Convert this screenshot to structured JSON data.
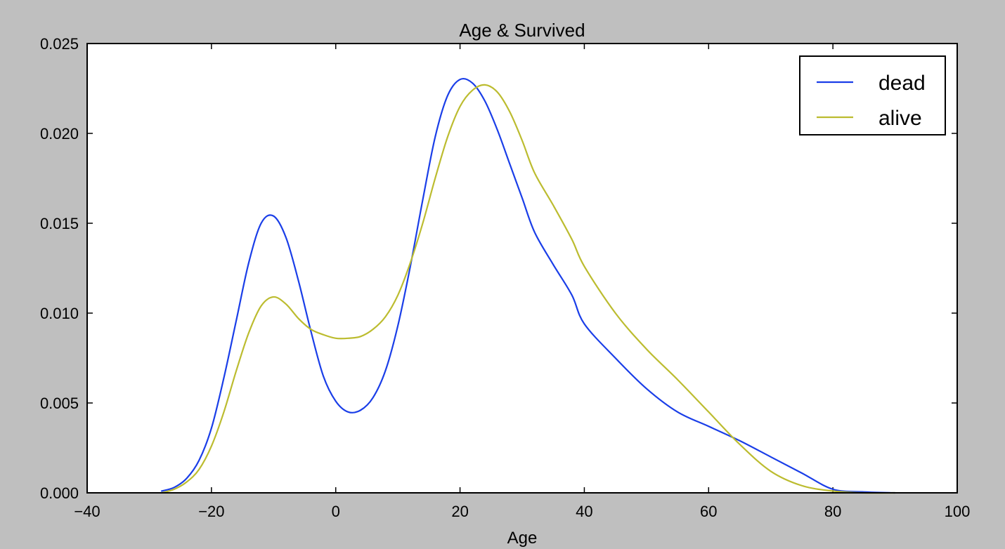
{
  "chart_data": {
    "type": "line",
    "title": "Age & Survived",
    "xlabel": "Age",
    "ylabel": "",
    "xlim": [
      -40,
      100
    ],
    "ylim": [
      0,
      0.025
    ],
    "xticks": [
      -40,
      -20,
      0,
      20,
      40,
      60,
      80,
      100
    ],
    "xtick_labels": [
      "−40",
      "−20",
      "0",
      "20",
      "40",
      "60",
      "80",
      "100"
    ],
    "yticks": [
      0,
      0.005,
      0.01,
      0.015,
      0.02,
      0.025
    ],
    "ytick_labels": [
      "0.000",
      "0.005",
      "0.010",
      "0.015",
      "0.020",
      "0.025"
    ],
    "grid": false,
    "legend_position": "top-right",
    "series": [
      {
        "name": "dead",
        "color": "#1a3ee8",
        "x": [
          -28,
          -26,
          -24,
          -22,
          -20,
          -18,
          -16,
          -14,
          -12,
          -10,
          -8,
          -6,
          -4,
          -2,
          0,
          2,
          4,
          6,
          8,
          10,
          12,
          14,
          16,
          18,
          20,
          22,
          24,
          26,
          28,
          30,
          32,
          35,
          38,
          40,
          45,
          50,
          55,
          60,
          65,
          70,
          75,
          80,
          85,
          90
        ],
        "y": [
          0.0001,
          0.0003,
          0.0008,
          0.0018,
          0.0036,
          0.0064,
          0.0096,
          0.0128,
          0.015,
          0.0154,
          0.0142,
          0.0118,
          0.009,
          0.0065,
          0.0051,
          0.0045,
          0.0046,
          0.0053,
          0.0068,
          0.0093,
          0.0126,
          0.0163,
          0.0198,
          0.0221,
          0.023,
          0.0228,
          0.0218,
          0.0202,
          0.0183,
          0.0164,
          0.0145,
          0.0127,
          0.011,
          0.0094,
          0.0075,
          0.0058,
          0.0045,
          0.0037,
          0.0029,
          0.002,
          0.0011,
          0.0002,
          5e-05,
          0.0
        ]
      },
      {
        "name": "alive",
        "color": "#bcbc2f",
        "x": [
          -28,
          -26,
          -24,
          -22,
          -20,
          -18,
          -16,
          -14,
          -12,
          -10,
          -8,
          -6,
          -4,
          -2,
          0,
          2,
          4,
          6,
          8,
          10,
          12,
          14,
          16,
          18,
          20,
          22,
          24,
          26,
          28,
          30,
          32,
          35,
          38,
          40,
          45,
          50,
          55,
          60,
          65,
          70,
          75,
          80,
          85,
          90
        ],
        "y": [
          0.0,
          0.0002,
          0.0006,
          0.0013,
          0.0026,
          0.0045,
          0.0068,
          0.0089,
          0.0104,
          0.0109,
          0.0105,
          0.0097,
          0.0091,
          0.0088,
          0.0086,
          0.0086,
          0.0087,
          0.0091,
          0.0098,
          0.011,
          0.0128,
          0.015,
          0.0175,
          0.0198,
          0.0215,
          0.0224,
          0.0227,
          0.0223,
          0.0212,
          0.0196,
          0.0178,
          0.016,
          0.0141,
          0.0126,
          0.01,
          0.008,
          0.0063,
          0.0045,
          0.0027,
          0.0012,
          0.0004,
          0.0001,
          0.0,
          0.0
        ]
      }
    ]
  }
}
